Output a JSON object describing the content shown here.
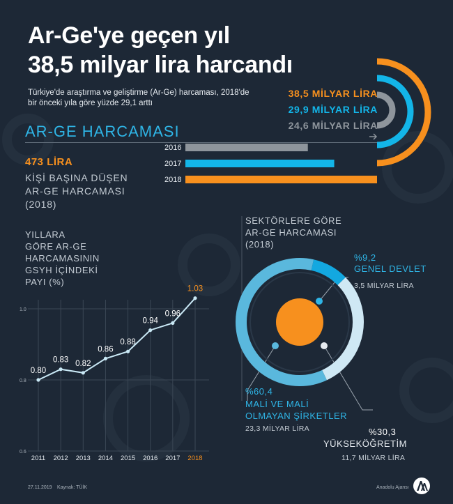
{
  "header": {
    "title_line1": "Ar-Ge'ye geçen yıl",
    "title_line2": "38,5 milyar lira harcandı",
    "subtitle_line1": "Türkiye'de araştırma ve geliştirme (Ar-Ge) harcaması, 2018'de",
    "subtitle_line2": "bir önceki yıla göre yüzde 29,1 arttı"
  },
  "spending": {
    "title": "AR-GE HARCAMASI",
    "per_capita_value": "473 LİRA",
    "per_capita_label_1": "KİŞİ BAŞINA DÜŞEN",
    "per_capita_label_2": "AR-GE HARCAMASI",
    "per_capita_label_3": "(2018)"
  },
  "footer": {
    "date": "27.11.2019",
    "source": "Kaynak: TÜİK",
    "agency": "Anadolu Ajansı"
  },
  "chart_data": [
    {
      "type": "bar",
      "title": "AR-GE HARCAMASI",
      "categories": [
        "2016",
        "2017",
        "2018"
      ],
      "values": [
        24.6,
        29.9,
        38.5
      ],
      "value_labels": [
        "24,6 MİLYAR LİRA",
        "29,9 MİLYAR LİRA",
        "38,5 MİLYAR LİRA"
      ],
      "colors": [
        "#8e959c",
        "#13b5e8",
        "#f7901e"
      ]
    },
    {
      "type": "line",
      "title_lines": [
        "YILLARA",
        "GÖRE AR-GE",
        "HARCAMASININ",
        "GSYH İÇİNDEKİ",
        "PAYI (%)"
      ],
      "x": [
        "2011",
        "2012",
        "2013",
        "2014",
        "2015",
        "2016",
        "2017",
        "2018"
      ],
      "y": [
        0.8,
        0.83,
        0.82,
        0.86,
        0.88,
        0.94,
        0.96,
        1.03
      ],
      "labels": [
        "0.80",
        "0.83",
        "0.82",
        "0.86",
        "0.88",
        "0.94",
        "0.96",
        "1.03"
      ],
      "yticks": [
        "0.6",
        "0.8",
        "1.0"
      ],
      "ylim": [
        0.6,
        1.0
      ],
      "grid": true,
      "line_color": "#c9e8f5",
      "highlight_color": "#f7901e"
    },
    {
      "type": "pie",
      "title_lines": [
        "SEKTÖRLERE GÖRE",
        "AR-GE HARCAMASI",
        "(2018)"
      ],
      "slices": [
        {
          "pct_label": "%60,4",
          "name_lines": [
            "MALİ VE MALİ",
            "OLMAYAN ŞİRKETLER"
          ],
          "sub": "23,3 MİLYAR LİRA",
          "value": 60.4,
          "color": "#5ab8dd"
        },
        {
          "pct_label": "%30,3",
          "name_lines": [
            "YÜKSEKÖĞRETİM"
          ],
          "sub": "11,7 MİLYAR LİRA",
          "value": 30.3,
          "color": "#cfe8f4"
        },
        {
          "pct_label": "%9,2",
          "name_lines": [
            "GENEL DEVLET"
          ],
          "sub": "3,5 MİLYAR LİRA",
          "value": 9.2,
          "color": "#13a8e0"
        }
      ]
    }
  ]
}
